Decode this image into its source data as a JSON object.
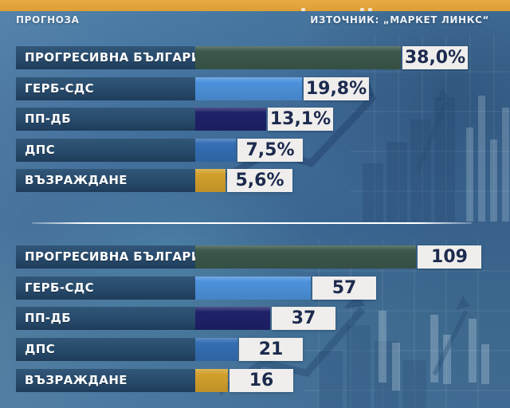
{
  "header": {
    "prognosis_label": "ПРОГНОЗА",
    "source_label": "ИЗТОЧНИК: „МАРКЕТ ЛИНКС“"
  },
  "chart_data": [
    {
      "type": "bar",
      "orientation": "horizontal",
      "categories": [
        "ПРОГРЕСИВНА БЪЛГАРИЯ",
        "ГЕРБ-СДС",
        "ПП-ДБ",
        "ДПС",
        "ВЪЗРАЖДАНЕ"
      ],
      "values": [
        38.0,
        19.8,
        13.1,
        7.5,
        5.6
      ],
      "value_labels": [
        "38,0%",
        "19,8%",
        "13,1%",
        "7,5%",
        "5,6%"
      ],
      "unit": "percent",
      "xlim": [
        0,
        40
      ],
      "grid": false,
      "legend": "none",
      "bar_colors": [
        "#3b584a",
        "#4c92dc",
        "#1f2169",
        "#346eb4",
        "#d3a02c"
      ]
    },
    {
      "type": "bar",
      "orientation": "horizontal",
      "categories": [
        "ПРОГРЕСИВНА БЪЛГАРИЯ",
        "ГЕРБ-СДС",
        "ПП-ДБ",
        "ДПС",
        "ВЪЗРАЖДАНЕ"
      ],
      "values": [
        109,
        57,
        37,
        21,
        16
      ],
      "value_labels": [
        "109",
        "57",
        "37",
        "21",
        "16"
      ],
      "unit": "seats",
      "xlim": [
        0,
        115
      ],
      "grid": false,
      "legend": "none",
      "bar_colors": [
        "#3b584a",
        "#4c92dc",
        "#1f2169",
        "#346eb4",
        "#d3a02c"
      ]
    }
  ],
  "colors": {
    "headline_strip": "#df9f34",
    "label_background": "#274a6b",
    "value_box_background": "#efeeec",
    "value_box_text": "#1c2a4e",
    "header_text": "#eef3f9",
    "separator": "#ffffff"
  }
}
